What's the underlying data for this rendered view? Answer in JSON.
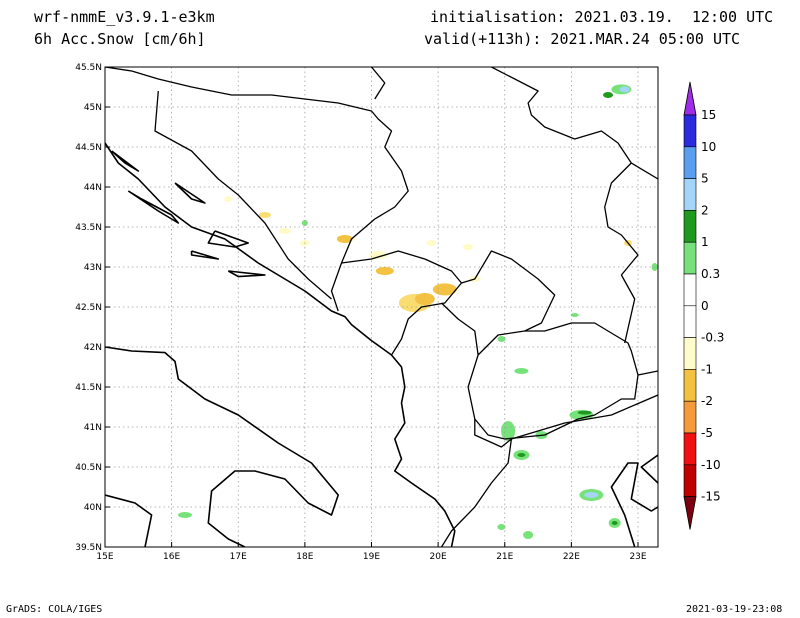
{
  "header": {
    "model": "wrf-nmmE_v3.9.1-e3km",
    "field": "6h Acc.Snow [cm/6h]",
    "init": "initialisation: 2021.03.19.  12:00 UTC",
    "valid": "valid(+113h): 2021.MAR.24 05:00 UTC"
  },
  "footer": {
    "credit": "GrADS: COLA/IGES",
    "timestamp": "2021-03-19-23:08"
  },
  "map": {
    "lon_range": [
      15,
      23.3
    ],
    "lat_range": [
      39.5,
      45.5
    ],
    "lon_ticks": [
      {
        "v": 15,
        "label": "15E"
      },
      {
        "v": 16,
        "label": "16E"
      },
      {
        "v": 17,
        "label": "17E"
      },
      {
        "v": 18,
        "label": "18E"
      },
      {
        "v": 19,
        "label": "19E"
      },
      {
        "v": 20,
        "label": "20E"
      },
      {
        "v": 21,
        "label": "21E"
      },
      {
        "v": 22,
        "label": "22E"
      },
      {
        "v": 23,
        "label": "23E"
      }
    ],
    "lat_ticks": [
      {
        "v": 39.5,
        "label": "39.5N"
      },
      {
        "v": 40,
        "label": "40N"
      },
      {
        "v": 40.5,
        "label": "40.5N"
      },
      {
        "v": 41,
        "label": "41N"
      },
      {
        "v": 41.5,
        "label": "41.5N"
      },
      {
        "v": 42,
        "label": "42N"
      },
      {
        "v": 42.5,
        "label": "42.5N"
      },
      {
        "v": 43,
        "label": "43N"
      },
      {
        "v": 43.5,
        "label": "43.5N"
      },
      {
        "v": 44,
        "label": "44N"
      },
      {
        "v": 44.5,
        "label": "44.5N"
      },
      {
        "v": 45,
        "label": "45N"
      },
      {
        "v": 45.5,
        "label": "45.5N"
      }
    ]
  },
  "colorbar": {
    "labels": [
      "15",
      "10",
      "5",
      "2",
      "1",
      "0.3",
      "0",
      "-0.3",
      "-1",
      "-2",
      "-5",
      "-10",
      "-15"
    ],
    "colors": [
      "#2a2adf",
      "#5b9ef0",
      "#a4d4f8",
      "#1f9a1f",
      "#76e07a",
      "#ffffff",
      "#ffffff",
      "#fffccc",
      "#f4c242",
      "#f49a3a",
      "#f01010",
      "#c00000"
    ],
    "top_color": "#9f2de8",
    "bottom_color": "#7d0010"
  },
  "snow_areas": [
    {
      "lon": 22.75,
      "lat": 45.22,
      "rx": 10,
      "ry": 5,
      "class": 1
    },
    {
      "lon": 22.8,
      "lat": 45.22,
      "rx": 5,
      "ry": 3,
      "class": 3
    },
    {
      "lon": 22.55,
      "lat": 45.15,
      "rx": 5,
      "ry": 3,
      "class": 2
    },
    {
      "lon": 19.65,
      "lat": 42.55,
      "rx": 16,
      "ry": 9,
      "class": -1
    },
    {
      "lon": 19.8,
      "lat": 42.6,
      "rx": 10,
      "ry": 6,
      "class": -2
    },
    {
      "lon": 20.1,
      "lat": 42.72,
      "rx": 12,
      "ry": 6,
      "class": -2
    },
    {
      "lon": 19.2,
      "lat": 42.95,
      "rx": 9,
      "ry": 4,
      "class": -2
    },
    {
      "lon": 18.6,
      "lat": 43.35,
      "rx": 8,
      "ry": 4,
      "class": -2
    },
    {
      "lon": 17.4,
      "lat": 43.65,
      "rx": 6,
      "ry": 3,
      "class": -1
    },
    {
      "lon": 17.7,
      "lat": 43.45,
      "rx": 6,
      "ry": 3,
      "class": -0.3
    },
    {
      "lon": 18.0,
      "lat": 43.3,
      "rx": 5,
      "ry": 3,
      "class": -0.3
    },
    {
      "lon": 19.1,
      "lat": 43.15,
      "rx": 9,
      "ry": 4,
      "class": -0.3
    },
    {
      "lon": 16.85,
      "lat": 43.85,
      "rx": 4,
      "ry": 3,
      "class": -0.3
    },
    {
      "lon": 19.9,
      "lat": 43.3,
      "rx": 5,
      "ry": 3,
      "class": -0.3
    },
    {
      "lon": 20.45,
      "lat": 43.25,
      "rx": 5,
      "ry": 3,
      "class": -0.3
    },
    {
      "lon": 20.55,
      "lat": 42.85,
      "rx": 6,
      "ry": 3,
      "class": -0.3
    },
    {
      "lon": 22.85,
      "lat": 43.3,
      "rx": 4,
      "ry": 3,
      "class": -1
    },
    {
      "lon": 21.25,
      "lat": 41.7,
      "rx": 7,
      "ry": 3,
      "class": 1
    },
    {
      "lon": 20.95,
      "lat": 42.1,
      "rx": 4,
      "ry": 3,
      "class": 1
    },
    {
      "lon": 21.05,
      "lat": 40.95,
      "rx": 7,
      "ry": 10,
      "class": 1
    },
    {
      "lon": 21.25,
      "lat": 40.65,
      "rx": 8,
      "ry": 5,
      "class": 1
    },
    {
      "lon": 21.25,
      "lat": 40.65,
      "rx": 4,
      "ry": 2,
      "class": 2
    },
    {
      "lon": 22.15,
      "lat": 41.15,
      "rx": 12,
      "ry": 5,
      "class": 1
    },
    {
      "lon": 22.2,
      "lat": 41.18,
      "rx": 7,
      "ry": 2,
      "class": 2
    },
    {
      "lon": 21.55,
      "lat": 40.9,
      "rx": 6,
      "ry": 4,
      "class": 1
    },
    {
      "lon": 22.3,
      "lat": 40.15,
      "rx": 12,
      "ry": 6,
      "class": 1
    },
    {
      "lon": 22.3,
      "lat": 40.15,
      "rx": 7,
      "ry": 3,
      "class": 3
    },
    {
      "lon": 22.65,
      "lat": 39.8,
      "rx": 6,
      "ry": 5,
      "class": 1
    },
    {
      "lon": 22.65,
      "lat": 39.8,
      "rx": 3,
      "ry": 2,
      "class": 2
    },
    {
      "lon": 21.35,
      "lat": 39.65,
      "rx": 5,
      "ry": 4,
      "class": 1
    },
    {
      "lon": 20.95,
      "lat": 39.75,
      "rx": 4,
      "ry": 3,
      "class": 1
    },
    {
      "lon": 16.2,
      "lat": 39.9,
      "rx": 7,
      "ry": 3,
      "class": 1
    },
    {
      "lon": 23.25,
      "lat": 43.0,
      "rx": 3,
      "ry": 4,
      "class": 1
    },
    {
      "lon": 22.05,
      "lat": 42.4,
      "rx": 4,
      "ry": 2,
      "class": 1
    },
    {
      "lon": 18.0,
      "lat": 43.55,
      "rx": 3,
      "ry": 3,
      "class": 1
    }
  ],
  "outlines": {
    "coasts": [
      [
        [
          15.0,
          44.55
        ],
        [
          15.2,
          44.3
        ],
        [
          15.5,
          44.1
        ],
        [
          15.9,
          43.75
        ],
        [
          16.3,
          43.5
        ],
        [
          16.8,
          43.35
        ],
        [
          17.3,
          43.05
        ],
        [
          17.6,
          42.9
        ],
        [
          18.0,
          42.7
        ],
        [
          18.4,
          42.45
        ],
        [
          18.6,
          42.38
        ],
        [
          18.7,
          42.28
        ],
        [
          19.0,
          42.08
        ],
        [
          19.3,
          41.9
        ],
        [
          19.45,
          41.75
        ],
        [
          19.5,
          41.5
        ],
        [
          19.45,
          41.3
        ],
        [
          19.5,
          41.05
        ],
        [
          19.35,
          40.85
        ],
        [
          19.45,
          40.6
        ],
        [
          19.35,
          40.45
        ],
        [
          19.6,
          40.3
        ],
        [
          19.95,
          40.1
        ],
        [
          20.1,
          39.95
        ],
        [
          20.25,
          39.7
        ],
        [
          20.2,
          39.5
        ]
      ],
      [
        [
          15.0,
          42.0
        ],
        [
          15.4,
          41.95
        ],
        [
          15.9,
          41.93
        ],
        [
          16.05,
          41.82
        ],
        [
          16.1,
          41.6
        ],
        [
          16.5,
          41.35
        ],
        [
          17.0,
          41.15
        ],
        [
          17.6,
          40.8
        ],
        [
          18.1,
          40.55
        ],
        [
          18.5,
          40.15
        ],
        [
          18.4,
          39.9
        ],
        [
          18.05,
          40.05
        ],
        [
          17.7,
          40.35
        ],
        [
          17.25,
          40.45
        ],
        [
          16.95,
          40.45
        ],
        [
          16.6,
          40.2
        ],
        [
          16.55,
          39.8
        ],
        [
          16.85,
          39.6
        ],
        [
          17.1,
          39.5
        ]
      ],
      [
        [
          15.6,
          39.5
        ],
        [
          15.7,
          39.9
        ],
        [
          15.45,
          40.05
        ],
        [
          15.0,
          40.15
        ]
      ],
      [
        [
          22.95,
          39.5
        ],
        [
          22.8,
          39.9
        ],
        [
          22.6,
          40.25
        ],
        [
          22.85,
          40.55
        ],
        [
          23.0,
          40.55
        ],
        [
          22.9,
          40.1
        ],
        [
          23.2,
          39.95
        ],
        [
          23.3,
          40.0
        ]
      ],
      [
        [
          23.3,
          40.3
        ],
        [
          23.05,
          40.5
        ],
        [
          23.3,
          40.65
        ]
      ],
      [
        [
          15.35,
          43.95
        ],
        [
          15.8,
          43.7
        ],
        [
          16.1,
          43.55
        ],
        [
          16.0,
          43.65
        ],
        [
          15.55,
          43.85
        ],
        [
          15.35,
          43.95
        ]
      ],
      [
        [
          16.05,
          44.05
        ],
        [
          16.5,
          43.8
        ],
        [
          16.3,
          43.85
        ],
        [
          16.05,
          44.05
        ]
      ],
      [
        [
          16.65,
          43.45
        ],
        [
          17.15,
          43.3
        ],
        [
          16.95,
          43.25
        ],
        [
          16.55,
          43.3
        ],
        [
          16.65,
          43.45
        ]
      ],
      [
        [
          16.3,
          43.2
        ],
        [
          16.7,
          43.1
        ],
        [
          16.3,
          43.15
        ],
        [
          16.3,
          43.2
        ]
      ],
      [
        [
          16.85,
          42.95
        ],
        [
          17.4,
          42.9
        ],
        [
          17.0,
          42.88
        ],
        [
          16.85,
          42.95
        ]
      ],
      [
        [
          15.1,
          44.45
        ],
        [
          15.5,
          44.2
        ],
        [
          15.3,
          44.3
        ],
        [
          15.1,
          44.45
        ]
      ]
    ],
    "borders": [
      [
        [
          15.0,
          45.5
        ],
        [
          15.4,
          45.45
        ],
        [
          15.8,
          45.35
        ],
        [
          16.3,
          45.25
        ],
        [
          16.9,
          45.15
        ],
        [
          17.5,
          45.15
        ],
        [
          18.0,
          45.1
        ],
        [
          18.5,
          45.05
        ],
        [
          19.0,
          44.95
        ],
        [
          19.1,
          44.85
        ],
        [
          19.3,
          44.7
        ],
        [
          19.2,
          44.5
        ],
        [
          19.45,
          44.2
        ],
        [
          19.55,
          43.95
        ],
        [
          19.35,
          43.75
        ],
        [
          19.05,
          43.6
        ],
        [
          18.7,
          43.35
        ],
        [
          18.55,
          43.05
        ],
        [
          18.4,
          42.7
        ],
        [
          18.5,
          42.45
        ]
      ],
      [
        [
          15.8,
          45.2
        ],
        [
          15.75,
          44.7
        ],
        [
          16.3,
          44.45
        ],
        [
          16.7,
          44.1
        ],
        [
          17.0,
          43.9
        ],
        [
          17.4,
          43.55
        ],
        [
          17.75,
          43.1
        ],
        [
          18.05,
          42.85
        ],
        [
          18.4,
          42.6
        ]
      ],
      [
        [
          19.0,
          45.5
        ],
        [
          19.2,
          45.3
        ],
        [
          19.05,
          45.1
        ]
      ],
      [
        [
          18.55,
          43.05
        ],
        [
          19.0,
          43.1
        ],
        [
          19.4,
          43.2
        ],
        [
          19.8,
          43.1
        ],
        [
          20.2,
          42.95
        ],
        [
          20.35,
          42.8
        ],
        [
          20.1,
          42.55
        ],
        [
          19.75,
          42.5
        ],
        [
          19.55,
          42.35
        ],
        [
          19.45,
          42.1
        ],
        [
          19.3,
          41.9
        ]
      ],
      [
        [
          20.35,
          42.8
        ],
        [
          20.55,
          42.85
        ],
        [
          20.8,
          43.2
        ],
        [
          21.1,
          43.1
        ],
        [
          21.5,
          42.85
        ],
        [
          21.75,
          42.65
        ],
        [
          21.55,
          42.3
        ],
        [
          21.3,
          42.2
        ],
        [
          20.9,
          42.15
        ],
        [
          20.6,
          41.9
        ],
        [
          20.55,
          42.2
        ],
        [
          20.3,
          42.35
        ],
        [
          20.05,
          42.55
        ]
      ],
      [
        [
          20.6,
          41.9
        ],
        [
          20.45,
          41.5
        ],
        [
          20.55,
          41.1
        ],
        [
          20.75,
          40.9
        ],
        [
          21.0,
          40.85
        ],
        [
          21.6,
          40.9
        ],
        [
          22.1,
          41.1
        ],
        [
          22.35,
          41.15
        ],
        [
          22.75,
          41.35
        ],
        [
          22.95,
          41.35
        ],
        [
          23.0,
          41.65
        ],
        [
          22.9,
          41.95
        ],
        [
          22.85,
          42.05
        ],
        [
          22.35,
          42.3
        ],
        [
          22.0,
          42.3
        ],
        [
          21.6,
          42.2
        ],
        [
          21.3,
          42.2
        ]
      ],
      [
        [
          22.8,
          42.05
        ],
        [
          22.95,
          42.6
        ],
        [
          22.75,
          42.9
        ],
        [
          23.0,
          43.15
        ],
        [
          22.75,
          43.4
        ],
        [
          22.55,
          43.5
        ],
        [
          22.5,
          43.75
        ],
        [
          22.6,
          44.05
        ],
        [
          22.9,
          44.3
        ]
      ],
      [
        [
          22.9,
          44.3
        ],
        [
          22.7,
          44.55
        ],
        [
          22.45,
          44.7
        ],
        [
          22.05,
          44.6
        ],
        [
          21.6,
          44.75
        ],
        [
          21.4,
          44.9
        ],
        [
          21.35,
          45.05
        ],
        [
          21.5,
          45.2
        ],
        [
          20.8,
          45.5
        ]
      ],
      [
        [
          20.55,
          41.1
        ],
        [
          20.55,
          40.9
        ],
        [
          20.95,
          40.75
        ],
        [
          21.1,
          40.85
        ],
        [
          21.05,
          40.55
        ],
        [
          20.8,
          40.3
        ],
        [
          20.55,
          40.0
        ],
        [
          20.2,
          39.7
        ],
        [
          20.05,
          39.5
        ]
      ],
      [
        [
          21.1,
          40.85
        ],
        [
          21.9,
          41.05
        ],
        [
          22.6,
          41.15
        ],
        [
          23.3,
          41.4
        ]
      ],
      [
        [
          22.9,
          44.3
        ],
        [
          23.3,
          44.1
        ]
      ],
      [
        [
          23.0,
          41.65
        ],
        [
          23.3,
          41.7
        ]
      ]
    ]
  }
}
